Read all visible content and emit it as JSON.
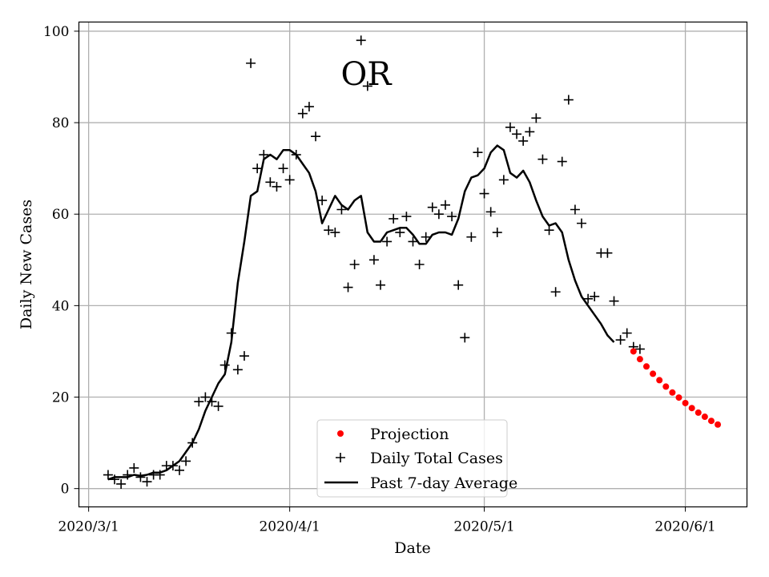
{
  "chart_data": {
    "type": "line+scatter",
    "state_label": "OR",
    "xlabel": "Date",
    "ylabel": "Daily New Cases",
    "x_start": "2020-03-02",
    "xlim": [
      -1.5,
      101.5
    ],
    "ylim": [
      -4,
      102
    ],
    "grid": true,
    "x_ticks": [
      {
        "day": 0,
        "label": "2020/3/1"
      },
      {
        "day": 31,
        "label": "2020/4/1"
      },
      {
        "day": 61,
        "label": "2020/5/1"
      },
      {
        "day": 92,
        "label": "2020/6/1"
      }
    ],
    "y_ticks": [
      0,
      20,
      40,
      60,
      80,
      100
    ],
    "legend": {
      "position": "lower-center",
      "entries": [
        {
          "label": "Projection",
          "marker": "dot",
          "color": "#ff0000"
        },
        {
          "label": "Daily Total Cases",
          "marker": "plus",
          "color": "#000000"
        },
        {
          "label": "Past 7-day Average",
          "marker": "line",
          "color": "#000000"
        }
      ]
    },
    "series": [
      {
        "name": "Daily Total Cases",
        "start_day": 3,
        "values": [
          3,
          2,
          1,
          3,
          4.5,
          2.5,
          1.5,
          3,
          3,
          5,
          5,
          4,
          6,
          10,
          19,
          20,
          19,
          18,
          27,
          34,
          26,
          29,
          93,
          70,
          73,
          67,
          66,
          70,
          67.5,
          73,
          82,
          83.5,
          77,
          63,
          56.5,
          56,
          61,
          44,
          49,
          98,
          88,
          50,
          44.5,
          54,
          59,
          56,
          59.5,
          54,
          49,
          55,
          61.5,
          60,
          62,
          59.5,
          44.5,
          33,
          55,
          73.5,
          64.5,
          60.5,
          56,
          67.5,
          79,
          77.5,
          76,
          78,
          81,
          72,
          56.5,
          43,
          71.5,
          85,
          61,
          58,
          41.5,
          42,
          51.5,
          51.5,
          41,
          32.5,
          34,
          31,
          30.5
        ]
      },
      {
        "name": "Past 7-day Average",
        "start_day": 3,
        "values": [
          2,
          2.5,
          2.5,
          2.5,
          3,
          2.8,
          3,
          3.5,
          3.5,
          4,
          5,
          6,
          8,
          10,
          13,
          17,
          20,
          23,
          25,
          32,
          45,
          54,
          64,
          65,
          72,
          73,
          72,
          74,
          74,
          73,
          71,
          69,
          65,
          58,
          61,
          64,
          62,
          61,
          63,
          64,
          56,
          54,
          54,
          56,
          56.5,
          57,
          57,
          55.5,
          53.5,
          53.5,
          55.5,
          56,
          56,
          55.5,
          59,
          65,
          68,
          68.5,
          70,
          73.5,
          75,
          74,
          69,
          68,
          69.5,
          67,
          63,
          59.5,
          57.5,
          58,
          56,
          50,
          45.5,
          42,
          40,
          38,
          36,
          33.5,
          32
        ]
      },
      {
        "name": "Projection",
        "start_day": 84,
        "values": [
          30,
          28.3,
          26.7,
          25.1,
          23.7,
          22.3,
          21,
          19.9,
          18.7,
          17.6,
          16.6,
          15.7,
          14.8,
          14
        ]
      }
    ]
  }
}
